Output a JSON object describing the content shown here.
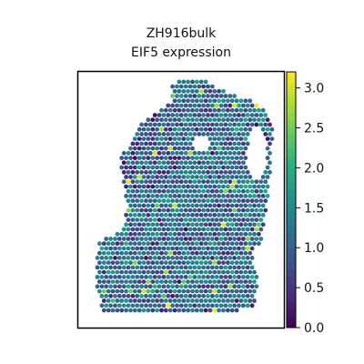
{
  "title_line1": "ZH916bulk",
  "title_line2": "EIF5 expression",
  "chart_data": {
    "type": "scatter",
    "subtype": "spatial-spot-map",
    "title": "ZH916bulk\nEIF5 expression",
    "xlabel": "",
    "ylabel": "",
    "grid": false,
    "colormap": "viridis",
    "color_range": [
      0.0,
      3.2
    ],
    "colorbar": {
      "ticks": [
        0.0,
        0.5,
        1.0,
        1.5,
        2.0,
        2.5,
        3.0
      ],
      "tick_labels": [
        "0.0",
        "0.5",
        "1.0",
        "1.5",
        "2.0",
        "2.5",
        "3.0"
      ]
    },
    "tissue_outline": [
      [
        0.45,
        0.04
      ],
      [
        0.6,
        0.03
      ],
      [
        0.72,
        0.08
      ],
      [
        0.88,
        0.12
      ],
      [
        0.95,
        0.22
      ],
      [
        0.92,
        0.5
      ],
      [
        0.88,
        0.72
      ],
      [
        0.86,
        0.93
      ],
      [
        0.12,
        0.95
      ],
      [
        0.08,
        0.8
      ],
      [
        0.1,
        0.66
      ],
      [
        0.22,
        0.62
      ],
      [
        0.24,
        0.52
      ],
      [
        0.2,
        0.35
      ],
      [
        0.3,
        0.2
      ],
      [
        0.45,
        0.12
      ]
    ],
    "holes": [
      {
        "cx": 0.87,
        "cy": 0.32,
        "rx": 0.05,
        "ry": 0.1
      },
      {
        "cx": 0.6,
        "cy": 0.28,
        "rx": 0.05,
        "ry": 0.025
      },
      {
        "cx": 0.88,
        "cy": 0.73,
        "rx": 0.03,
        "ry": 0.05
      }
    ],
    "mean_expression": 1.1,
    "max_expression": 3.2
  }
}
